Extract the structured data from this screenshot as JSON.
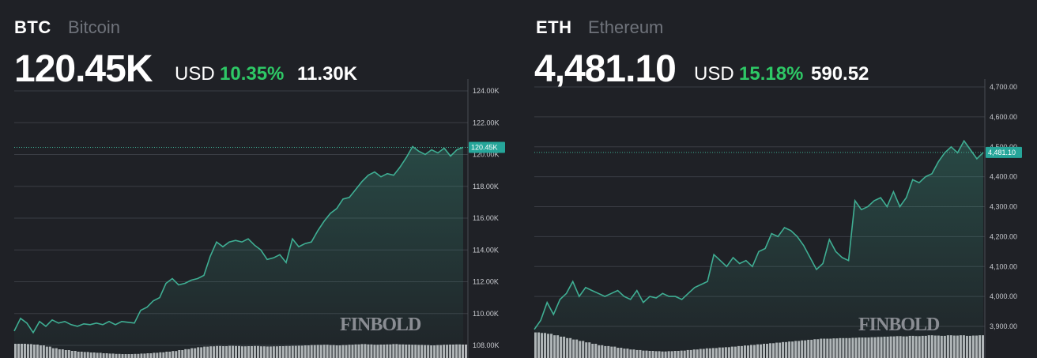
{
  "btc": {
    "symbol": "BTC",
    "name": "Bitcoin",
    "price": "120.45K",
    "currency": "USD",
    "change_pct": "10.35%",
    "change_abs": "11.30K",
    "current_label": "120.45K",
    "watermark": "FINBOLD"
  },
  "eth": {
    "symbol": "ETH",
    "name": "Ethereum",
    "price": "4,481.10",
    "currency": "USD",
    "change_pct": "15.18%",
    "change_abs": "590.52",
    "current_label": "4,481.10",
    "watermark": "FINBOLD"
  },
  "colors": {
    "background": "#1f2126",
    "line": "#3fae93",
    "positive": "#2ec866",
    "tag": "#26a69a",
    "volume": "#c4c6ca"
  },
  "chart_data": [
    {
      "type": "line",
      "title": "BTC Bitcoin",
      "yticks": [
        "124.00K",
        "122.00K",
        "120.00K",
        "118.00K",
        "116.00K",
        "114.00K",
        "112.00K",
        "110.00K",
        "108.00K"
      ],
      "ylim": [
        107800,
        124400
      ],
      "current": 120450,
      "values": [
        108900,
        109700,
        109400,
        108800,
        109500,
        109200,
        109600,
        109400,
        109500,
        109300,
        109200,
        109350,
        109300,
        109400,
        109300,
        109500,
        109300,
        109500,
        109450,
        109400,
        110200,
        110400,
        110800,
        111000,
        111900,
        112200,
        111800,
        111900,
        112100,
        112200,
        112400,
        113600,
        114500,
        114200,
        114500,
        114600,
        114500,
        114700,
        114300,
        114000,
        113400,
        113500,
        113700,
        113200,
        114700,
        114200,
        114400,
        114500,
        115200,
        115800,
        116300,
        116600,
        117200,
        117300,
        117800,
        118300,
        118700,
        118900,
        118600,
        118800,
        118700,
        119200,
        119800,
        120500,
        120200,
        120000,
        120300,
        120100,
        120400,
        119900,
        120300,
        120450
      ],
      "volume": [
        0.9,
        0.9,
        0.88,
        0.85,
        0.8,
        0.72,
        0.62,
        0.55,
        0.5,
        0.45,
        0.4,
        0.38,
        0.35,
        0.33,
        0.3,
        0.28,
        0.26,
        0.25,
        0.25,
        0.26,
        0.28,
        0.3,
        0.33,
        0.36,
        0.4,
        0.44,
        0.5,
        0.56,
        0.62,
        0.68,
        0.72,
        0.74,
        0.76,
        0.75,
        0.77,
        0.76,
        0.74,
        0.75,
        0.76,
        0.74,
        0.73,
        0.74,
        0.75,
        0.76,
        0.77,
        0.78,
        0.8,
        0.82,
        0.83,
        0.84,
        0.82,
        0.8,
        0.82,
        0.84,
        0.86,
        0.88,
        0.86,
        0.84,
        0.85,
        0.86,
        0.88,
        0.86,
        0.85,
        0.84,
        0.83,
        0.82,
        0.8,
        0.82,
        0.84,
        0.85,
        0.86,
        0.85
      ]
    },
    {
      "type": "line",
      "title": "ETH Ethereum",
      "yticks": [
        "4,700.00",
        "4,600.00",
        "4,500.00",
        "4,400.00",
        "4,300.00",
        "4,200.00",
        "4,100.00",
        "4,000.00",
        "3,900.00"
      ],
      "ylim": [
        3880,
        4705
      ],
      "current": 4481.1,
      "values": [
        3890,
        3920,
        3980,
        3940,
        3990,
        4010,
        4050,
        4000,
        4030,
        4020,
        4010,
        4000,
        4010,
        4020,
        4000,
        3990,
        4020,
        3980,
        4000,
        3995,
        4010,
        4000,
        4000,
        3990,
        4010,
        4030,
        4040,
        4050,
        4140,
        4120,
        4100,
        4130,
        4110,
        4120,
        4100,
        4150,
        4160,
        4210,
        4200,
        4230,
        4220,
        4200,
        4170,
        4130,
        4090,
        4110,
        4190,
        4150,
        4130,
        4120,
        4320,
        4290,
        4300,
        4320,
        4330,
        4300,
        4350,
        4300,
        4330,
        4390,
        4380,
        4400,
        4410,
        4450,
        4480,
        4500,
        4480,
        4520,
        4490,
        4460,
        4481.1
      ],
      "volume": [
        0.9,
        0.88,
        0.85,
        0.8,
        0.75,
        0.7,
        0.65,
        0.6,
        0.55,
        0.5,
        0.45,
        0.42,
        0.4,
        0.36,
        0.33,
        0.3,
        0.28,
        0.26,
        0.25,
        0.24,
        0.23,
        0.24,
        0.25,
        0.26,
        0.28,
        0.3,
        0.32,
        0.34,
        0.35,
        0.37,
        0.38,
        0.4,
        0.42,
        0.44,
        0.46,
        0.48,
        0.5,
        0.52,
        0.54,
        0.56,
        0.58,
        0.6,
        0.62,
        0.64,
        0.66,
        0.68,
        0.68,
        0.69,
        0.7,
        0.7,
        0.71,
        0.72,
        0.72,
        0.73,
        0.74,
        0.75,
        0.76,
        0.77,
        0.76,
        0.78,
        0.77,
        0.78,
        0.8,
        0.79,
        0.78,
        0.8,
        0.79,
        0.8,
        0.78,
        0.79,
        0.8
      ]
    }
  ]
}
